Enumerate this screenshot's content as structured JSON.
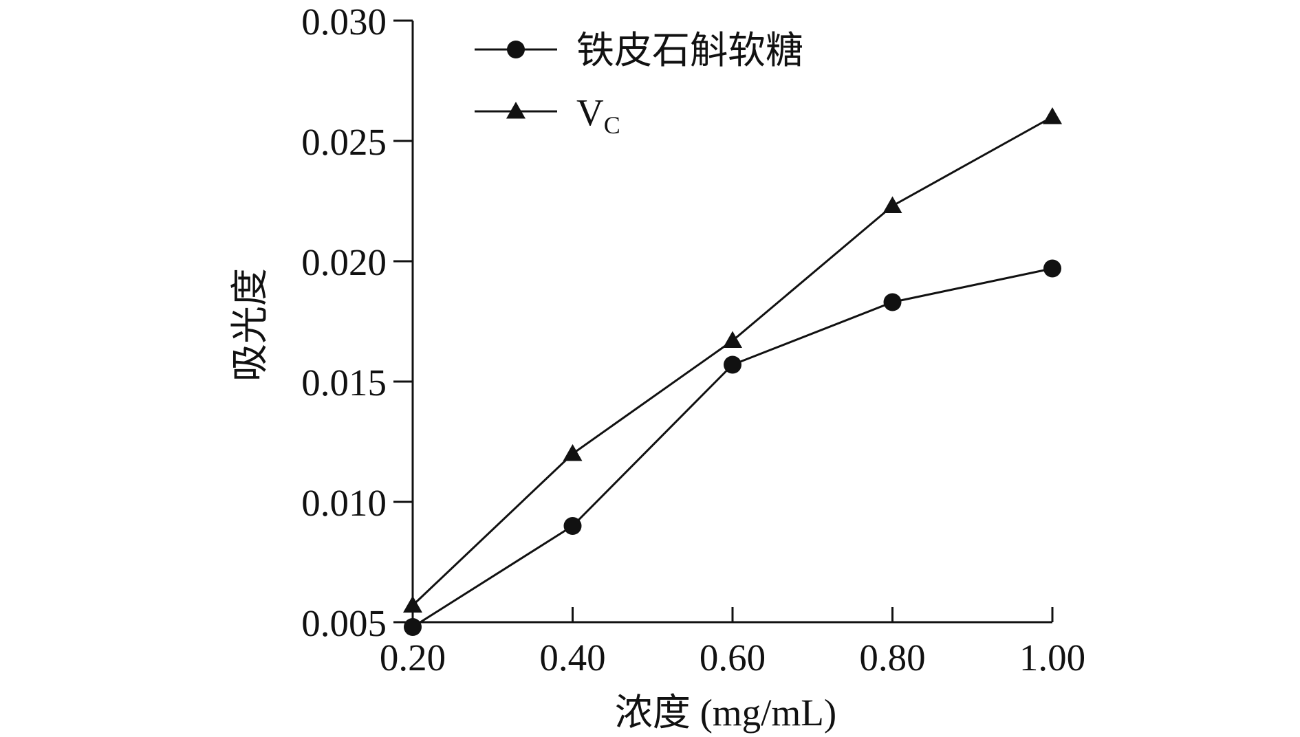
{
  "chart_data": {
    "type": "line",
    "x": [
      0.2,
      0.4,
      0.6,
      0.8,
      1.0
    ],
    "x_tick_labels": [
      "0.20",
      "0.40",
      "0.60",
      "0.80",
      "1.00"
    ],
    "y_tick_labels": [
      "0.005",
      "0.010",
      "0.015",
      "0.020",
      "0.025",
      "0.030"
    ],
    "y_ticks": [
      0.005,
      0.01,
      0.015,
      0.02,
      0.025,
      0.03
    ],
    "xlim": [
      0.2,
      1.0
    ],
    "ylim": [
      0.005,
      0.03
    ],
    "xlabel": "浓度 (mg/mL)",
    "ylabel": "吸光度",
    "grid": false,
    "legend_position": "top-left",
    "colors": {
      "line": "#111111",
      "background": "#ffffff"
    },
    "series": [
      {
        "name": "铁皮石斛软糖",
        "marker": "circle",
        "values": [
          0.0048,
          0.009,
          0.0157,
          0.0183,
          0.0197
        ]
      },
      {
        "name": "V",
        "name_subscript": "C",
        "marker": "triangle",
        "values": [
          0.0057,
          0.012,
          0.0167,
          0.0223,
          0.026
        ]
      }
    ]
  }
}
